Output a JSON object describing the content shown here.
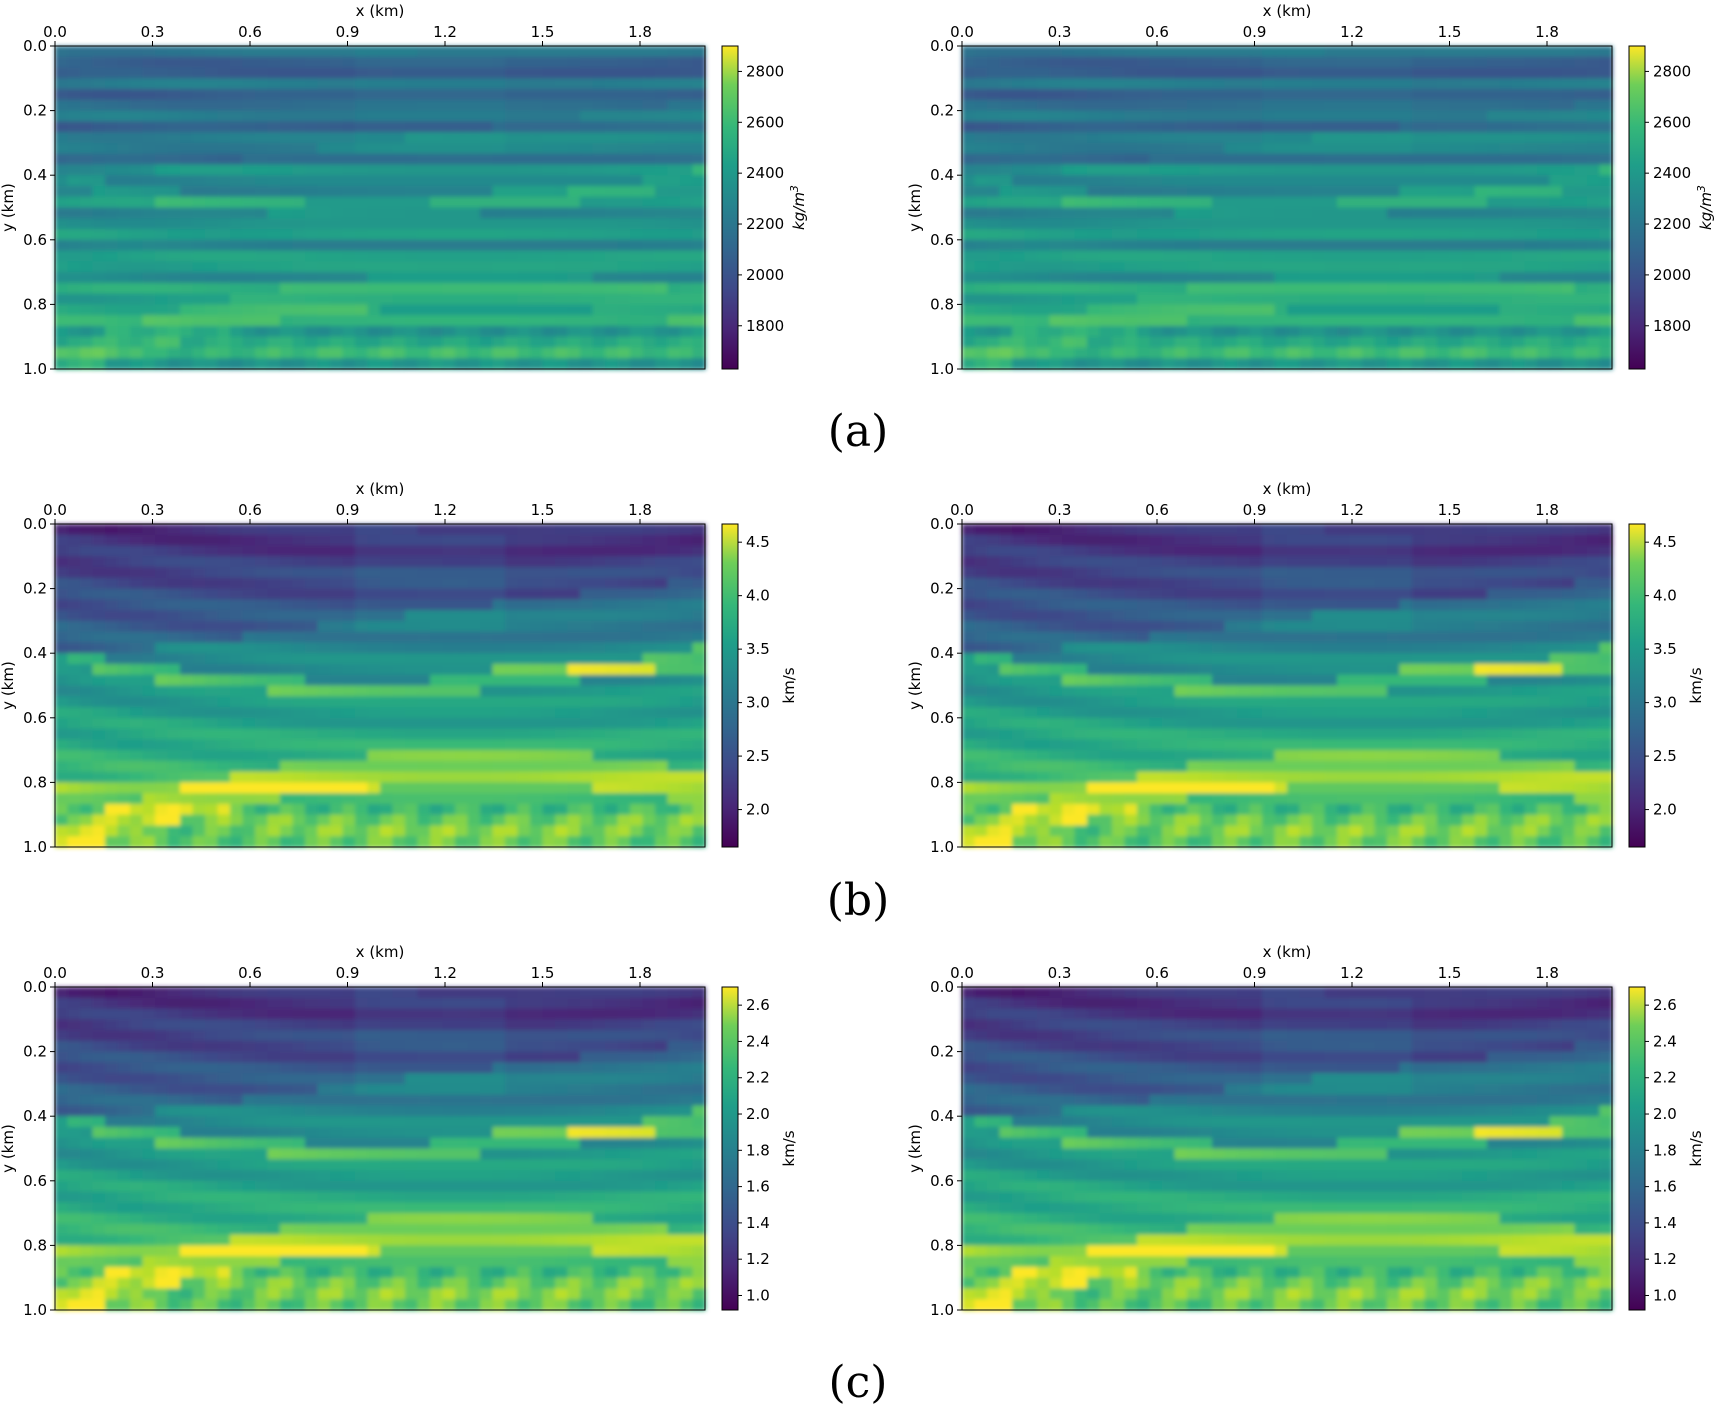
{
  "captions": [
    "(a)",
    "(b)",
    "(c)"
  ],
  "chart_data": [
    {
      "type": "heatmap",
      "panel": "a-left",
      "row": 0,
      "col": 0,
      "xlabel": "x (km)",
      "ylabel": "y (km)",
      "xticks": [
        "0.0",
        "0.3",
        "0.6",
        "0.9",
        "1.2",
        "1.5",
        "1.8"
      ],
      "yticks": [
        "0.0",
        "0.2",
        "0.4",
        "0.6",
        "0.8",
        "1.0"
      ],
      "xlim": [
        0,
        2.0
      ],
      "ylim": [
        0,
        1.0
      ],
      "colorbar": {
        "label": "kg/m^3",
        "ticks": [
          "1800",
          "2000",
          "2200",
          "2400",
          "2600",
          "2800"
        ],
        "range": [
          1630,
          2900
        ],
        "colormap": "viridis"
      }
    },
    {
      "type": "heatmap",
      "panel": "a-right",
      "row": 0,
      "col": 1,
      "xlabel": "x (km)",
      "ylabel": "y (km)",
      "xticks": [
        "0.0",
        "0.3",
        "0.6",
        "0.9",
        "1.2",
        "1.5",
        "1.8"
      ],
      "yticks": [
        "0.0",
        "0.2",
        "0.4",
        "0.6",
        "0.8",
        "1.0"
      ],
      "xlim": [
        0,
        2.0
      ],
      "ylim": [
        0,
        1.0
      ],
      "colorbar": {
        "label": "kg/m^3",
        "ticks": [
          "1800",
          "2000",
          "2200",
          "2400",
          "2600",
          "2800"
        ],
        "range": [
          1630,
          2900
        ],
        "colormap": "viridis"
      }
    },
    {
      "type": "heatmap",
      "panel": "b-left",
      "row": 1,
      "col": 0,
      "xlabel": "x (km)",
      "ylabel": "y (km)",
      "xticks": [
        "0.0",
        "0.3",
        "0.6",
        "0.9",
        "1.2",
        "1.5",
        "1.8"
      ],
      "yticks": [
        "0.0",
        "0.2",
        "0.4",
        "0.6",
        "0.8",
        "1.0"
      ],
      "xlim": [
        0,
        2.0
      ],
      "ylim": [
        0,
        1.0
      ],
      "colorbar": {
        "label": "km/s",
        "ticks": [
          "2.0",
          "2.5",
          "3.0",
          "3.5",
          "4.0",
          "4.5"
        ],
        "range": [
          1.65,
          4.67
        ],
        "colormap": "viridis"
      }
    },
    {
      "type": "heatmap",
      "panel": "b-right",
      "row": 1,
      "col": 1,
      "xlabel": "x (km)",
      "ylabel": "y (km)",
      "xticks": [
        "0.0",
        "0.3",
        "0.6",
        "0.9",
        "1.2",
        "1.5",
        "1.8"
      ],
      "yticks": [
        "0.0",
        "0.2",
        "0.4",
        "0.6",
        "0.8",
        "1.0"
      ],
      "xlim": [
        0,
        2.0
      ],
      "ylim": [
        0,
        1.0
      ],
      "colorbar": {
        "label": "km/s",
        "ticks": [
          "2.0",
          "2.5",
          "3.0",
          "3.5",
          "4.0",
          "4.5"
        ],
        "range": [
          1.65,
          4.67
        ],
        "colormap": "viridis"
      }
    },
    {
      "type": "heatmap",
      "panel": "c-left",
      "row": 2,
      "col": 0,
      "xlabel": "x (km)",
      "ylabel": "y (km)",
      "xticks": [
        "0.0",
        "0.3",
        "0.6",
        "0.9",
        "1.2",
        "1.5",
        "1.8"
      ],
      "yticks": [
        "0.0",
        "0.2",
        "0.4",
        "0.6",
        "0.8",
        "1.0"
      ],
      "xlim": [
        0,
        2.0
      ],
      "ylim": [
        0,
        1.0
      ],
      "colorbar": {
        "label": "km/s",
        "ticks": [
          "1.0",
          "1.2",
          "1.4",
          "1.6",
          "1.8",
          "2.0",
          "2.2",
          "2.4",
          "2.6"
        ],
        "range": [
          0.92,
          2.7
        ],
        "colormap": "viridis"
      }
    },
    {
      "type": "heatmap",
      "panel": "c-right",
      "row": 2,
      "col": 1,
      "xlabel": "x (km)",
      "ylabel": "y (km)",
      "xticks": [
        "0.0",
        "0.3",
        "0.6",
        "0.9",
        "1.2",
        "1.5",
        "1.8"
      ],
      "yticks": [
        "0.0",
        "0.2",
        "0.4",
        "0.6",
        "0.8",
        "1.0"
      ],
      "xlim": [
        0,
        2.0
      ],
      "ylim": [
        0,
        1.0
      ],
      "colorbar": {
        "label": "km/s",
        "ticks": [
          "1.0",
          "1.2",
          "1.4",
          "1.6",
          "1.8",
          "2.0",
          "2.2",
          "2.4",
          "2.6"
        ],
        "range": [
          0.92,
          2.7
        ],
        "colormap": "viridis"
      }
    }
  ]
}
